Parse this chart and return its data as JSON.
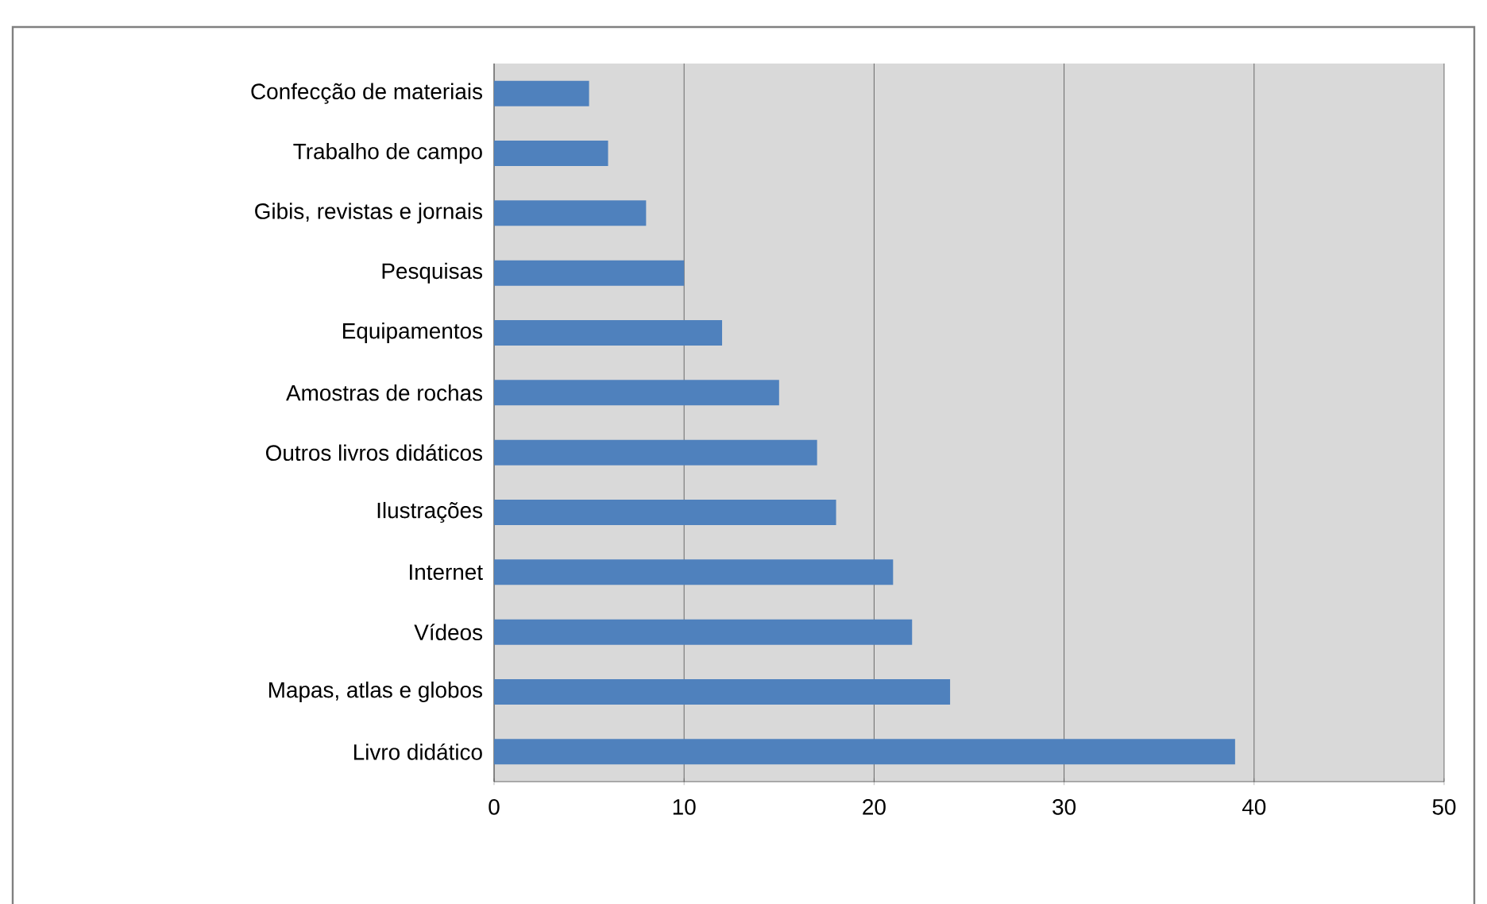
{
  "chart_data": {
    "type": "bar",
    "orientation": "horizontal",
    "categories": [
      "Confecção de materiais",
      "Trabalho de campo",
      "Gibis, revistas e jornais",
      "Pesquisas",
      "Equipamentos",
      "Amostras de rochas",
      "Outros livros didáticos",
      "Ilustrações",
      "Internet",
      "Vídeos",
      "Mapas, atlas e globos",
      "Livro didático"
    ],
    "values": [
      5,
      6,
      8,
      10,
      12,
      15,
      17,
      18,
      21,
      22,
      24,
      39
    ],
    "color": "#4f81bd",
    "xlim": [
      0,
      50
    ],
    "xticks": [
      0,
      10,
      20,
      30,
      40,
      50
    ],
    "grid": "x"
  }
}
